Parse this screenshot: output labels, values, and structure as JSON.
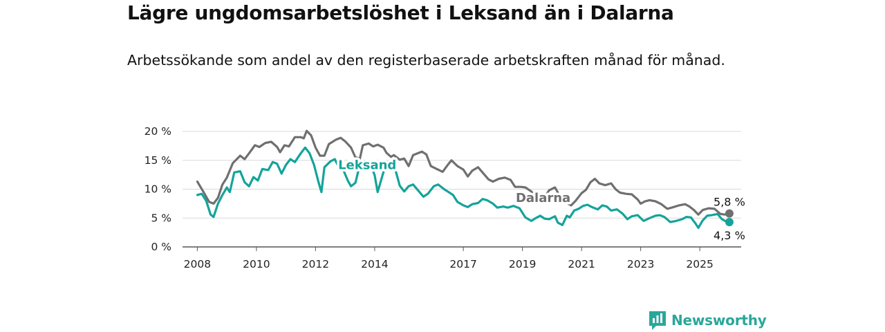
{
  "title": "Lägre ungdomsarbetslöshet i Leksand än i Dalarna",
  "subtitle": "Arbetssökande som andel av den registerbaserade arbetskraften månad för månad.",
  "brand": {
    "name": "Newsworthy",
    "icon": "newsworthy-logo-icon",
    "color": "#2aa79b"
  },
  "chart_data": {
    "type": "line",
    "xlim": [
      2007.5,
      2026.4
    ],
    "ylim": [
      0,
      20
    ],
    "x_ticks": [
      "2008",
      "2010",
      "2012",
      "2014",
      "2017",
      "2019",
      "2021",
      "2023",
      "2025"
    ],
    "x_tick_values": [
      2008,
      2010,
      2012,
      2014,
      2017,
      2019,
      2021,
      2023,
      2025
    ],
    "y_ticks": [
      "0 %",
      "5 %",
      "10 %",
      "15 %",
      "20 %"
    ],
    "y_tick_values": [
      0,
      5,
      10,
      15,
      20
    ],
    "grid": true,
    "series": [
      {
        "name": "Dalarna",
        "color": "#6f6f6f",
        "end_label": "5,8 %",
        "points": [
          [
            2008.0,
            11.3
          ],
          [
            2008.2,
            9.6
          ],
          [
            2008.4,
            7.8
          ],
          [
            2008.55,
            7.5
          ],
          [
            2008.7,
            8.5
          ],
          [
            2008.85,
            10.8
          ],
          [
            2009.0,
            12.0
          ],
          [
            2009.2,
            14.5
          ],
          [
            2009.45,
            15.8
          ],
          [
            2009.6,
            15.2
          ],
          [
            2009.75,
            16.2
          ],
          [
            2009.95,
            17.6
          ],
          [
            2010.1,
            17.3
          ],
          [
            2010.3,
            18.0
          ],
          [
            2010.5,
            18.2
          ],
          [
            2010.7,
            17.3
          ],
          [
            2010.8,
            16.4
          ],
          [
            2010.95,
            17.6
          ],
          [
            2011.1,
            17.4
          ],
          [
            2011.3,
            19.0
          ],
          [
            2011.5,
            19.0
          ],
          [
            2011.6,
            18.8
          ],
          [
            2011.7,
            20.1
          ],
          [
            2011.85,
            19.3
          ],
          [
            2012.0,
            17.2
          ],
          [
            2012.15,
            15.8
          ],
          [
            2012.3,
            15.8
          ],
          [
            2012.45,
            17.8
          ],
          [
            2012.7,
            18.6
          ],
          [
            2012.85,
            18.9
          ],
          [
            2013.0,
            18.3
          ],
          [
            2013.2,
            17.2
          ],
          [
            2013.35,
            15.5
          ],
          [
            2013.5,
            15.3
          ],
          [
            2013.6,
            17.6
          ],
          [
            2013.8,
            17.9
          ],
          [
            2013.95,
            17.4
          ],
          [
            2014.1,
            17.7
          ],
          [
            2014.3,
            17.2
          ],
          [
            2014.4,
            16.3
          ],
          [
            2014.55,
            15.6
          ],
          [
            2014.65,
            15.9
          ],
          [
            2014.85,
            15.1
          ],
          [
            2015.0,
            15.3
          ],
          [
            2015.15,
            14.0
          ],
          [
            2015.3,
            15.9
          ],
          [
            2015.5,
            16.3
          ],
          [
            2015.6,
            16.5
          ],
          [
            2015.75,
            16.0
          ],
          [
            2015.9,
            14.0
          ],
          [
            2016.1,
            13.5
          ],
          [
            2016.3,
            13.0
          ],
          [
            2016.5,
            14.4
          ],
          [
            2016.6,
            15.0
          ],
          [
            2016.8,
            14.0
          ],
          [
            2017.0,
            13.4
          ],
          [
            2017.15,
            12.2
          ],
          [
            2017.3,
            13.2
          ],
          [
            2017.5,
            13.8
          ],
          [
            2017.65,
            12.9
          ],
          [
            2017.85,
            11.7
          ],
          [
            2018.0,
            11.3
          ],
          [
            2018.2,
            11.8
          ],
          [
            2018.4,
            12.0
          ],
          [
            2018.6,
            11.6
          ],
          [
            2018.75,
            10.4
          ],
          [
            2018.95,
            10.4
          ],
          [
            2019.1,
            10.3
          ],
          [
            2019.3,
            9.6
          ],
          [
            2019.5,
            8.3
          ],
          [
            2019.7,
            8.2
          ],
          [
            2019.9,
            9.8
          ],
          [
            2020.1,
            10.3
          ],
          [
            2020.3,
            8.5
          ],
          [
            2020.5,
            7.6
          ],
          [
            2020.65,
            7.2
          ],
          [
            2020.8,
            8.0
          ],
          [
            2021.0,
            9.3
          ],
          [
            2021.15,
            9.9
          ],
          [
            2021.3,
            11.2
          ],
          [
            2021.45,
            11.8
          ],
          [
            2021.6,
            11.0
          ],
          [
            2021.8,
            10.7
          ],
          [
            2022.0,
            11.0
          ],
          [
            2022.15,
            10.0
          ],
          [
            2022.3,
            9.4
          ],
          [
            2022.5,
            9.2
          ],
          [
            2022.7,
            9.1
          ],
          [
            2022.9,
            8.2
          ],
          [
            2023.0,
            7.5
          ],
          [
            2023.15,
            7.9
          ],
          [
            2023.3,
            8.1
          ],
          [
            2023.5,
            7.9
          ],
          [
            2023.7,
            7.4
          ],
          [
            2023.9,
            6.6
          ],
          [
            2024.05,
            6.8
          ],
          [
            2024.3,
            7.2
          ],
          [
            2024.5,
            7.4
          ],
          [
            2024.65,
            7.0
          ],
          [
            2024.8,
            6.4
          ],
          [
            2024.95,
            5.6
          ],
          [
            2025.1,
            6.4
          ],
          [
            2025.3,
            6.7
          ],
          [
            2025.5,
            6.6
          ],
          [
            2025.7,
            5.7
          ],
          [
            2025.85,
            5.6
          ],
          [
            2026.0,
            5.8
          ]
        ]
      },
      {
        "name": "Leksand",
        "color": "#14a39a",
        "end_label": "4,3 %",
        "points": [
          [
            2008.0,
            9.0
          ],
          [
            2008.15,
            9.2
          ],
          [
            2008.3,
            8.0
          ],
          [
            2008.45,
            5.6
          ],
          [
            2008.55,
            5.2
          ],
          [
            2008.7,
            7.5
          ],
          [
            2008.85,
            9.0
          ],
          [
            2009.0,
            10.3
          ],
          [
            2009.1,
            9.5
          ],
          [
            2009.25,
            12.9
          ],
          [
            2009.45,
            13.1
          ],
          [
            2009.6,
            11.2
          ],
          [
            2009.75,
            10.5
          ],
          [
            2009.9,
            12.1
          ],
          [
            2010.05,
            11.5
          ],
          [
            2010.2,
            13.5
          ],
          [
            2010.4,
            13.3
          ],
          [
            2010.55,
            14.7
          ],
          [
            2010.7,
            14.4
          ],
          [
            2010.85,
            12.7
          ],
          [
            2011.0,
            14.2
          ],
          [
            2011.15,
            15.2
          ],
          [
            2011.3,
            14.7
          ],
          [
            2011.5,
            16.2
          ],
          [
            2011.65,
            17.2
          ],
          [
            2011.8,
            16.2
          ],
          [
            2011.95,
            14.2
          ],
          [
            2012.1,
            11.2
          ],
          [
            2012.2,
            9.5
          ],
          [
            2012.3,
            13.8
          ],
          [
            2012.5,
            14.8
          ],
          [
            2012.65,
            15.2
          ],
          [
            2012.8,
            13.7
          ],
          [
            2012.95,
            13.2
          ],
          [
            2013.1,
            11.4
          ],
          [
            2013.2,
            10.5
          ],
          [
            2013.35,
            11.1
          ],
          [
            2013.5,
            14.3
          ],
          [
            2013.65,
            14.9
          ],
          [
            2013.85,
            14.5
          ],
          [
            2014.0,
            12.4
          ],
          [
            2014.1,
            9.5
          ],
          [
            2014.3,
            13.0
          ],
          [
            2014.45,
            14.7
          ],
          [
            2014.65,
            14.3
          ],
          [
            2014.85,
            10.6
          ],
          [
            2015.0,
            9.6
          ],
          [
            2015.15,
            10.5
          ],
          [
            2015.3,
            10.8
          ],
          [
            2015.5,
            9.6
          ],
          [
            2015.65,
            8.7
          ],
          [
            2015.8,
            9.2
          ],
          [
            2016.0,
            10.5
          ],
          [
            2016.15,
            10.8
          ],
          [
            2016.35,
            10.0
          ],
          [
            2016.5,
            9.5
          ],
          [
            2016.65,
            9.0
          ],
          [
            2016.8,
            7.8
          ],
          [
            2017.0,
            7.2
          ],
          [
            2017.15,
            6.9
          ],
          [
            2017.3,
            7.4
          ],
          [
            2017.5,
            7.6
          ],
          [
            2017.65,
            8.3
          ],
          [
            2017.8,
            8.1
          ],
          [
            2018.0,
            7.5
          ],
          [
            2018.15,
            6.8
          ],
          [
            2018.35,
            7.0
          ],
          [
            2018.5,
            6.8
          ],
          [
            2018.7,
            7.1
          ],
          [
            2018.9,
            6.7
          ],
          [
            2019.1,
            5.1
          ],
          [
            2019.3,
            4.5
          ],
          [
            2019.45,
            5.0
          ],
          [
            2019.6,
            5.4
          ],
          [
            2019.75,
            4.9
          ],
          [
            2019.9,
            4.8
          ],
          [
            2020.1,
            5.3
          ],
          [
            2020.2,
            4.2
          ],
          [
            2020.35,
            3.8
          ],
          [
            2020.5,
            5.4
          ],
          [
            2020.6,
            5.1
          ],
          [
            2020.75,
            6.3
          ],
          [
            2020.9,
            6.6
          ],
          [
            2021.05,
            7.1
          ],
          [
            2021.2,
            7.3
          ],
          [
            2021.35,
            6.9
          ],
          [
            2021.55,
            6.5
          ],
          [
            2021.7,
            7.2
          ],
          [
            2021.85,
            7.0
          ],
          [
            2022.0,
            6.3
          ],
          [
            2022.2,
            6.5
          ],
          [
            2022.4,
            5.7
          ],
          [
            2022.55,
            4.8
          ],
          [
            2022.7,
            5.3
          ],
          [
            2022.9,
            5.5
          ],
          [
            2023.1,
            4.5
          ],
          [
            2023.3,
            5.0
          ],
          [
            2023.5,
            5.4
          ],
          [
            2023.65,
            5.5
          ],
          [
            2023.8,
            5.2
          ],
          [
            2024.0,
            4.3
          ],
          [
            2024.2,
            4.5
          ],
          [
            2024.4,
            4.8
          ],
          [
            2024.55,
            5.2
          ],
          [
            2024.7,
            5.1
          ],
          [
            2024.85,
            4.1
          ],
          [
            2024.95,
            3.3
          ],
          [
            2025.1,
            4.6
          ],
          [
            2025.25,
            5.4
          ],
          [
            2025.4,
            5.5
          ],
          [
            2025.6,
            5.7
          ],
          [
            2025.75,
            4.8
          ],
          [
            2025.9,
            4.4
          ],
          [
            2026.0,
            4.3
          ]
        ]
      }
    ],
    "legend": "direct labels on lines"
  }
}
